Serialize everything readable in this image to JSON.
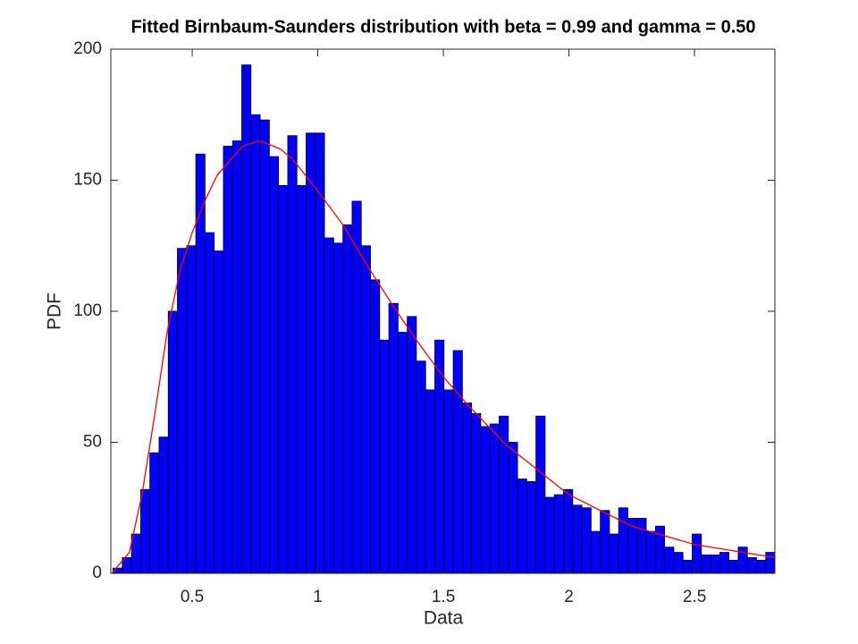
{
  "chart_data": {
    "type": "histogram",
    "title": "Fitted Birnbaum-Saunders distribution with beta = 0.99 and gamma = 0.50",
    "xlabel": "Data",
    "ylabel": "PDF",
    "bins": [
      0.185,
      0.2216,
      0.2582,
      0.2948,
      0.3314,
      0.368,
      0.4046,
      0.4412,
      0.4778,
      0.5144,
      0.551,
      0.5876,
      0.6242,
      0.6608,
      0.6974,
      0.734,
      0.7706,
      0.8072,
      0.8438,
      0.8804,
      0.917,
      0.9536,
      0.9902,
      1.0268,
      1.0634,
      1.1,
      1.1366,
      1.1732,
      1.2098,
      1.2464,
      1.283,
      1.3196,
      1.3562,
      1.3928,
      1.4294,
      1.466,
      1.5026,
      1.5392,
      1.5758,
      1.6124,
      1.649,
      1.6856,
      1.7222,
      1.7588,
      1.7954,
      1.832,
      1.8686,
      1.9052,
      1.9418,
      1.9784,
      2.015,
      2.0516,
      2.0882,
      2.1248,
      2.1614,
      2.198,
      2.2346,
      2.2712,
      2.3078,
      2.3444,
      2.381,
      2.4176,
      2.4542,
      2.4908,
      2.5274,
      2.564,
      2.6006,
      2.6372,
      2.6738,
      2.7104,
      2.747,
      2.7836,
      2.8202
    ],
    "values": [
      2,
      6,
      15,
      32,
      46,
      52,
      100,
      124,
      125,
      160,
      130,
      123,
      163,
      165,
      194,
      175,
      173,
      159,
      148,
      167,
      148,
      168,
      168,
      128,
      126,
      133,
      142,
      125,
      112,
      89,
      103,
      92,
      98,
      81,
      70,
      89,
      70,
      85,
      65,
      61,
      56,
      57,
      60,
      50,
      36,
      35,
      60,
      29,
      30,
      32,
      26,
      25,
      16,
      24,
      15,
      25,
      21,
      21,
      16,
      18,
      10,
      8,
      5,
      15,
      7,
      7,
      8,
      5,
      10,
      6,
      5,
      8
    ],
    "color": "#0000ff",
    "fit": {
      "color": "#ff0000",
      "x": [
        0.18,
        0.25,
        0.3,
        0.35,
        0.4,
        0.45,
        0.5,
        0.55,
        0.6,
        0.7,
        0.77,
        0.85,
        0.9,
        1.0,
        1.1,
        1.2,
        1.3,
        1.4,
        1.5,
        1.6,
        1.75,
        2.0,
        2.25,
        2.5,
        2.82
      ],
      "values": [
        0,
        8,
        30,
        60,
        92,
        115,
        130,
        142,
        152,
        163,
        165,
        162,
        158,
        146,
        133,
        117,
        102,
        88,
        75,
        64,
        49,
        30,
        18,
        11,
        6
      ]
    },
    "xlim": [
      0.176,
      2.82
    ],
    "ylim": [
      0,
      200
    ],
    "xticks": [
      0.5,
      1,
      1.5,
      2,
      2.5
    ],
    "yticks": [
      0,
      50,
      100,
      150,
      200
    ],
    "grid": false
  }
}
